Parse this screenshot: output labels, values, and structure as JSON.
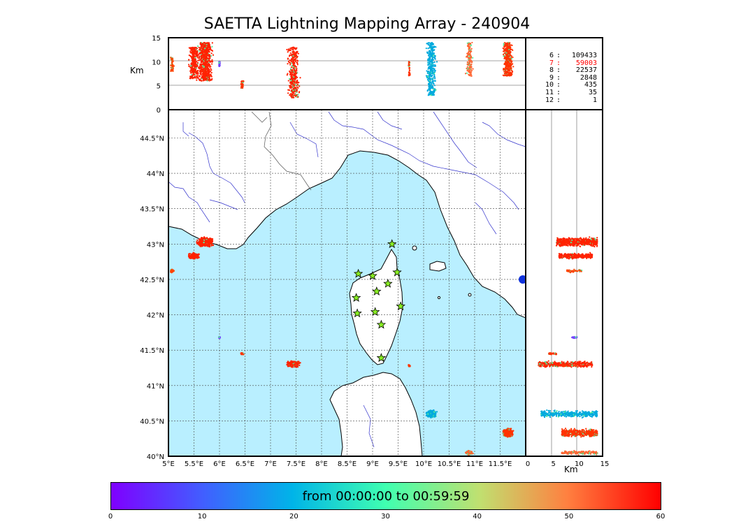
{
  "title": "SAETTA Lightning Mapping Array - 240904",
  "top_panel": {
    "ylabel": "Km",
    "y_ticks": [
      "15",
      "10",
      "5",
      "0"
    ]
  },
  "right_panel": {
    "xlabel": "Km",
    "x_ticks": [
      "0",
      "5",
      "10",
      "15"
    ]
  },
  "map": {
    "lon_ticks": [
      "5°E",
      "5.5°E",
      "6°E",
      "6.5°E",
      "7°E",
      "7.5°E",
      "8°E",
      "8.5°E",
      "9°E",
      "9.5°E",
      "10°E",
      "10.5°E",
      "11°E",
      "11.5°E"
    ],
    "lat_ticks": [
      "44.5°N",
      "44°N",
      "43.5°N",
      "43°N",
      "42.5°N",
      "42°N",
      "41.5°N",
      "41°N",
      "40.5°N",
      "40°N"
    ],
    "sea_color": "#b9efff",
    "land_color": "#ffffff",
    "river_color": "#3333cc"
  },
  "station_counts": [
    {
      "level": "6",
      "count": "109433",
      "color": "#000000"
    },
    {
      "level": "7",
      "count": "59003",
      "color": "#ff0000"
    },
    {
      "level": "8",
      "count": "22537",
      "color": "#000000"
    },
    {
      "level": "9",
      "count": "2848",
      "color": "#000000"
    },
    {
      "level": "10",
      "count": "435",
      "color": "#000000"
    },
    {
      "level": "11",
      "count": "35",
      "color": "#000000"
    },
    {
      "level": "12",
      "count": "1",
      "color": "#000000"
    }
  ],
  "stations": [
    {
      "lon": 9.38,
      "lat": 43.0
    },
    {
      "lon": 8.72,
      "lat": 42.58
    },
    {
      "lon": 9.0,
      "lat": 42.55
    },
    {
      "lon": 9.48,
      "lat": 42.6
    },
    {
      "lon": 9.3,
      "lat": 42.44
    },
    {
      "lon": 9.08,
      "lat": 42.33
    },
    {
      "lon": 8.68,
      "lat": 42.24
    },
    {
      "lon": 9.55,
      "lat": 42.12
    },
    {
      "lon": 8.7,
      "lat": 42.02
    },
    {
      "lon": 9.05,
      "lat": 42.04
    },
    {
      "lon": 9.17,
      "lat": 41.86
    },
    {
      "lon": 9.17,
      "lat": 41.39
    }
  ],
  "lightning_clusters": [
    {
      "lon": 5.72,
      "lat": 43.03,
      "w": 0.2,
      "h": 0.09,
      "zmin": 6,
      "zmax": 14,
      "c": "#ff2200"
    },
    {
      "lon": 5.5,
      "lat": 42.83,
      "w": 0.14,
      "h": 0.06,
      "zmin": 6.5,
      "zmax": 13,
      "c": "#ff2200"
    },
    {
      "lon": 5.07,
      "lat": 42.62,
      "w": 0.05,
      "h": 0.03,
      "zmin": 8,
      "zmax": 11,
      "c": "#ff4400"
    },
    {
      "lon": 6.45,
      "lat": 41.45,
      "w": 0.05,
      "h": 0.02,
      "zmin": 4.5,
      "zmax": 6,
      "c": "#ff3300"
    },
    {
      "lon": 7.45,
      "lat": 41.3,
      "w": 0.17,
      "h": 0.06,
      "zmin": 2.5,
      "zmax": 13,
      "c": "#ff2200"
    },
    {
      "lon": 9.72,
      "lat": 41.28,
      "w": 0.03,
      "h": 0.02,
      "zmin": 7,
      "zmax": 10,
      "c": "#ff3300"
    },
    {
      "lon": 10.15,
      "lat": 40.6,
      "w": 0.14,
      "h": 0.07,
      "zmin": 3,
      "zmax": 14,
      "c": "#00aadd"
    },
    {
      "lon": 10.9,
      "lat": 40.05,
      "w": 0.1,
      "h": 0.04,
      "zmin": 7,
      "zmax": 14,
      "c": "#ff6633"
    },
    {
      "lon": 11.65,
      "lat": 40.33,
      "w": 0.14,
      "h": 0.08,
      "zmin": 7,
      "zmax": 14,
      "c": "#ff3300"
    },
    {
      "lon": 6.0,
      "lat": 41.68,
      "w": 0.02,
      "h": 0.015,
      "zmin": 9,
      "zmax": 10,
      "c": "#7744ff"
    }
  ],
  "colorbar": {
    "label": "from 00:00:00 to 00:59:59",
    "ticks": [
      "0",
      "10",
      "20",
      "30",
      "40",
      "50",
      "60"
    ],
    "min": 0,
    "max": 60
  }
}
